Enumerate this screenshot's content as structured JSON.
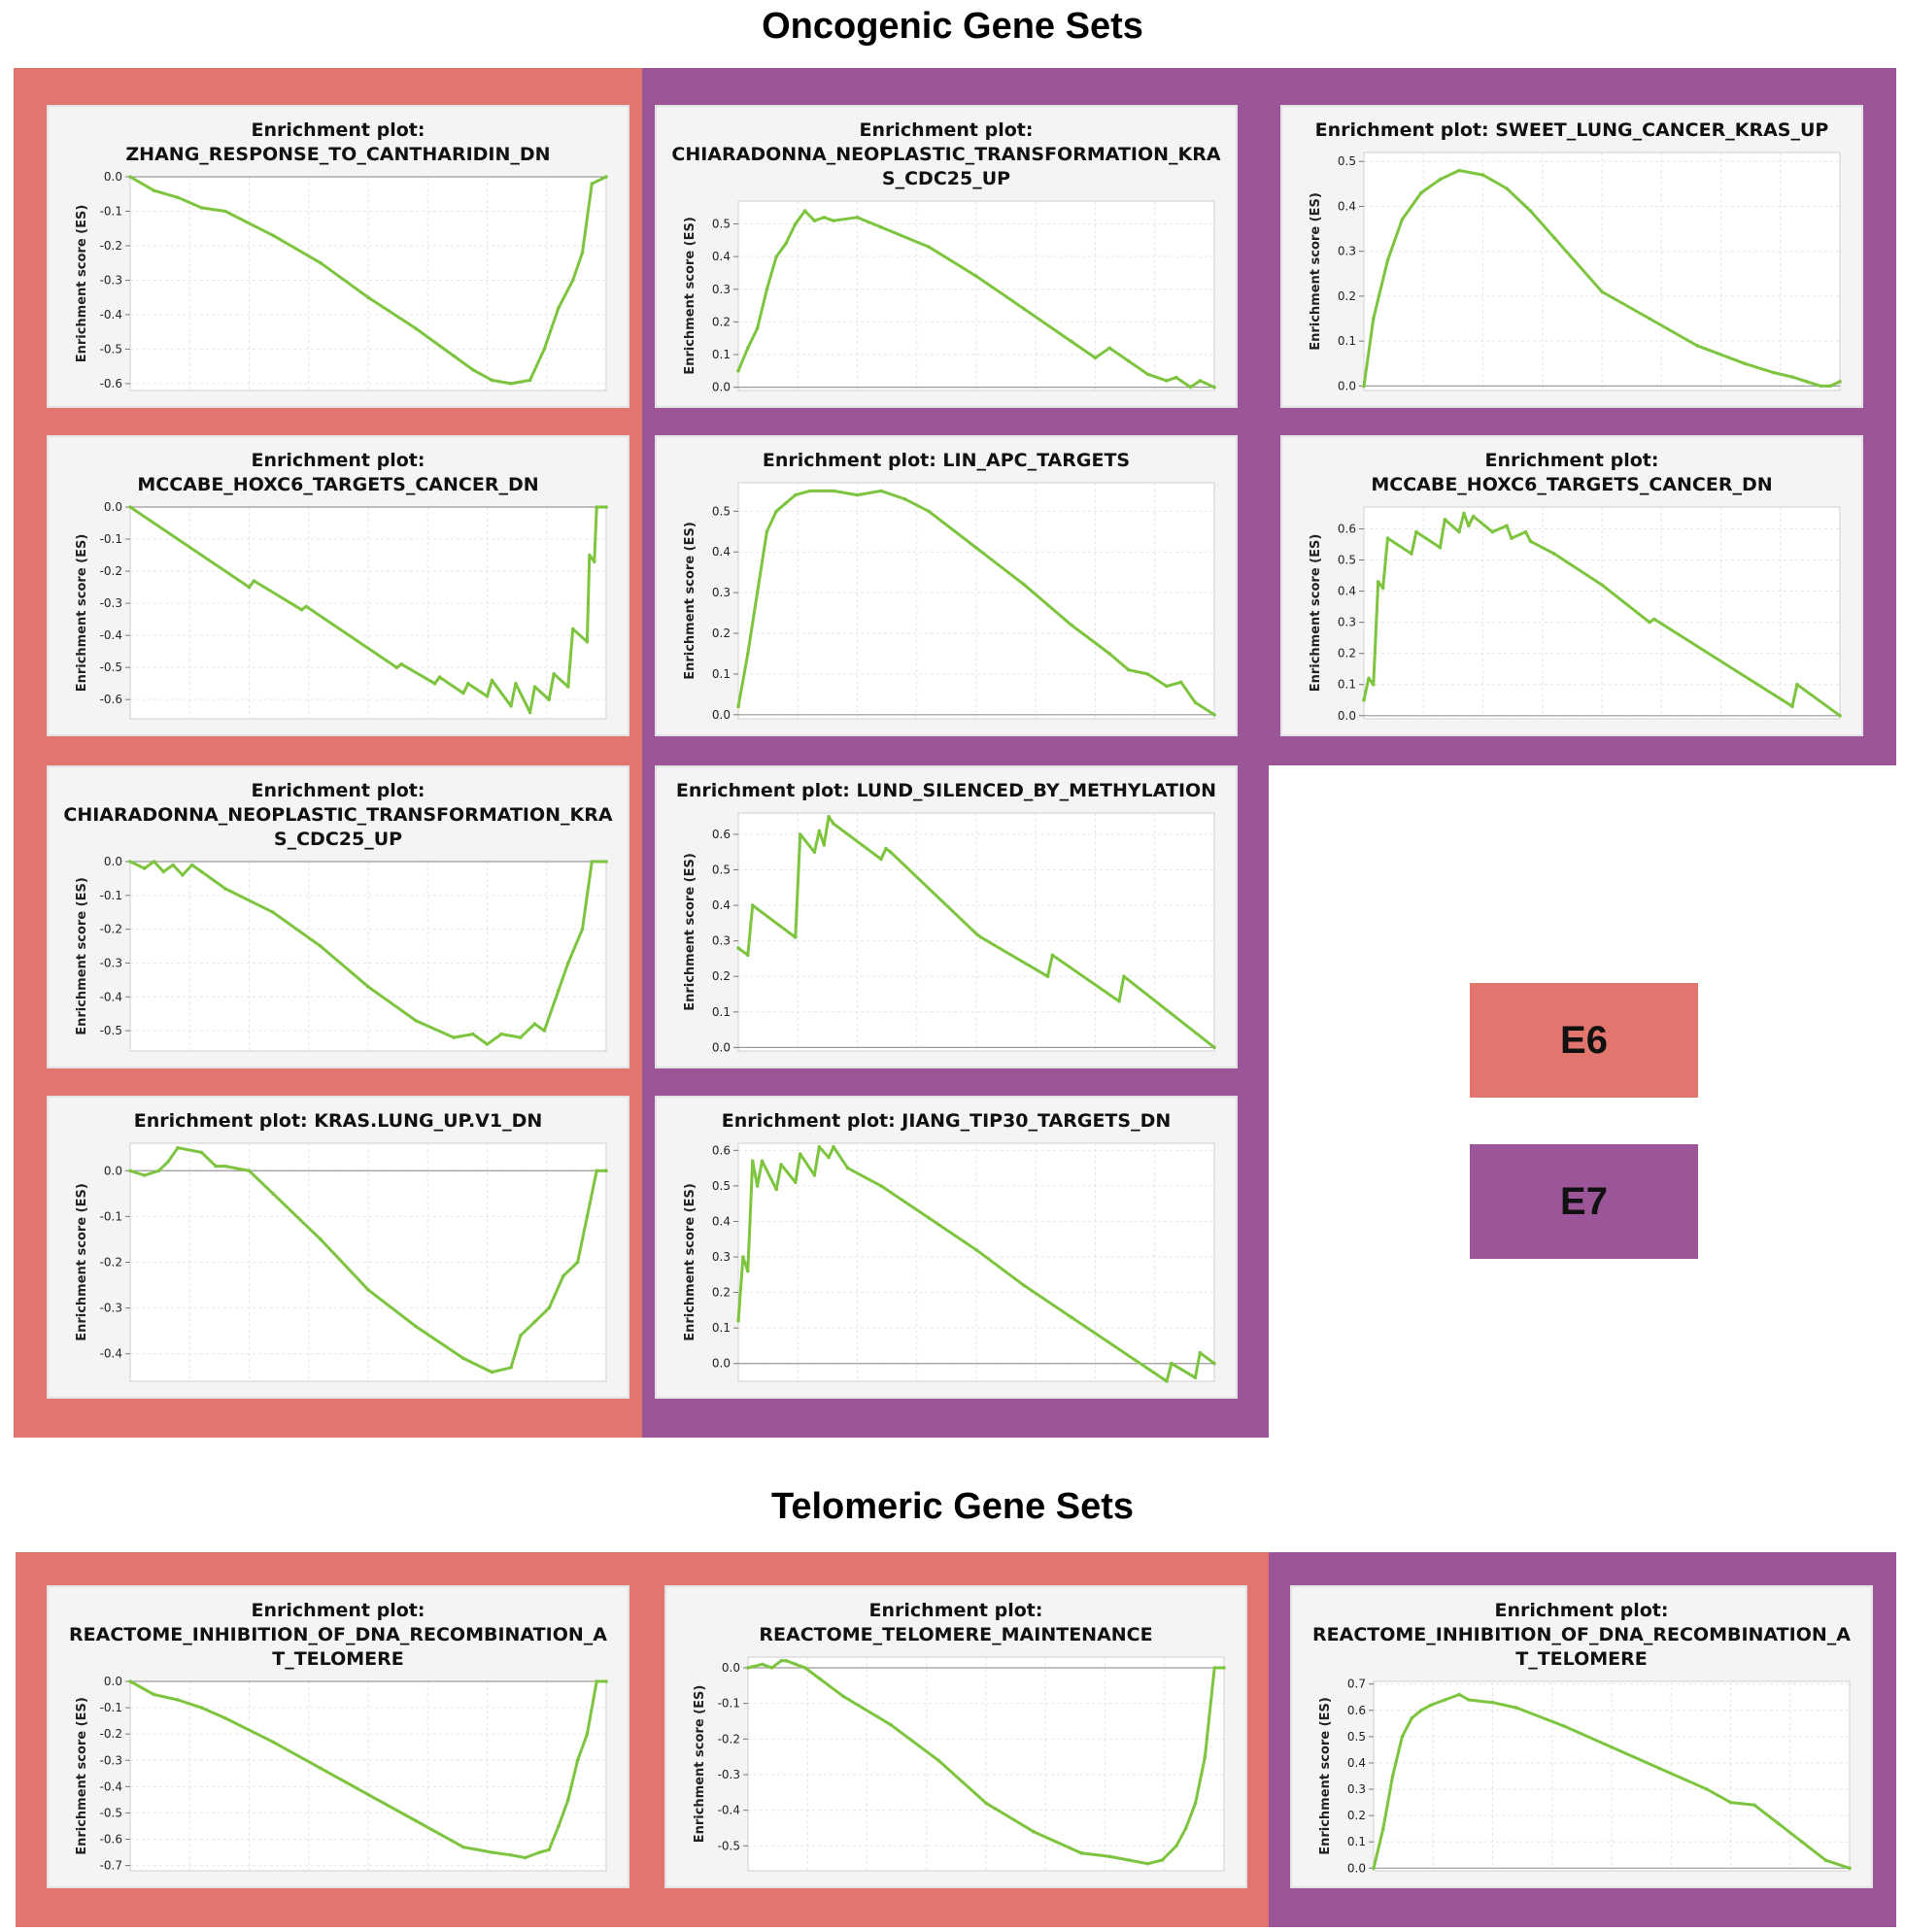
{
  "titles": {
    "oncogenic": "Oncogenic Gene Sets",
    "telomeric": "Telomeric Gene Sets"
  },
  "colors": {
    "E6": "#e3756f",
    "E7": "#9b5598",
    "curve": "#7dc43f",
    "panel_bg": "#f4f4f4"
  },
  "legend": [
    {
      "label": "E6",
      "color": "#e3756f"
    },
    {
      "label": "E7",
      "color": "#9b5598"
    }
  ],
  "ylabel": "Enrichment score (ES)",
  "chart_data": [
    {
      "id": "onc-e6-1",
      "group": "E6",
      "type": "line",
      "title_lines": [
        "Enrichment plot:",
        "ZHANG_RESPONSE_TO_CANTHARIDIN_DN"
      ],
      "ylabel": "Enrichment score (ES)",
      "ylim": [
        -0.62,
        0.0
      ],
      "ticks": [
        0.0,
        -0.1,
        -0.2,
        -0.3,
        -0.4,
        -0.5,
        -0.6
      ],
      "tick_labels": [
        "0.0",
        "-0.1",
        "-0.2",
        "-0.3",
        "-0.4",
        "-0.5",
        "-0.6"
      ],
      "x": [
        0,
        0.05,
        0.1,
        0.15,
        0.2,
        0.3,
        0.4,
        0.5,
        0.6,
        0.68,
        0.72,
        0.76,
        0.8,
        0.84,
        0.87,
        0.9,
        0.93,
        0.95,
        0.97,
        1.0
      ],
      "y": [
        0.0,
        -0.04,
        -0.06,
        -0.09,
        -0.1,
        -0.17,
        -0.25,
        -0.35,
        -0.44,
        -0.52,
        -0.56,
        -0.59,
        -0.6,
        -0.59,
        -0.5,
        -0.38,
        -0.3,
        -0.22,
        -0.02,
        0.0
      ]
    },
    {
      "id": "onc-e6-2",
      "group": "E6",
      "type": "line",
      "title_lines": [
        "Enrichment plot:",
        "MCCABE_HOXC6_TARGETS_CANCER_DN"
      ],
      "ylabel": "Enrichment score (ES)",
      "ylim": [
        -0.66,
        0.0
      ],
      "ticks": [
        0.0,
        -0.1,
        -0.2,
        -0.3,
        -0.4,
        -0.5,
        -0.6
      ],
      "tick_labels": [
        "0.0",
        "-0.1",
        "-0.2",
        "-0.3",
        "-0.4",
        "-0.5",
        "-0.6"
      ],
      "x": [
        0,
        0.25,
        0.26,
        0.36,
        0.37,
        0.56,
        0.57,
        0.64,
        0.65,
        0.7,
        0.71,
        0.75,
        0.76,
        0.8,
        0.81,
        0.84,
        0.85,
        0.88,
        0.89,
        0.92,
        0.93,
        0.96,
        0.965,
        0.975,
        0.98,
        1.0
      ],
      "y": [
        0.0,
        -0.25,
        -0.23,
        -0.32,
        -0.31,
        -0.5,
        -0.49,
        -0.55,
        -0.53,
        -0.58,
        -0.55,
        -0.59,
        -0.54,
        -0.62,
        -0.55,
        -0.64,
        -0.56,
        -0.6,
        -0.52,
        -0.56,
        -0.38,
        -0.42,
        -0.15,
        -0.17,
        0.0,
        0.0
      ]
    },
    {
      "id": "onc-e6-3",
      "group": "E6",
      "type": "line",
      "title_lines": [
        "Enrichment plot:",
        "CHIARADONNA_NEOPLASTIC_TRANSFORMATION_KRA",
        "S_CDC25_UP"
      ],
      "ylabel": "Enrichment score (ES)",
      "ylim": [
        -0.56,
        0.0
      ],
      "ticks": [
        0.0,
        -0.1,
        -0.2,
        -0.3,
        -0.4,
        -0.5
      ],
      "tick_labels": [
        "0.0",
        "-0.1",
        "-0.2",
        "-0.3",
        "-0.4",
        "-0.5"
      ],
      "x": [
        0,
        0.03,
        0.05,
        0.07,
        0.09,
        0.11,
        0.13,
        0.15,
        0.2,
        0.3,
        0.4,
        0.5,
        0.6,
        0.68,
        0.72,
        0.75,
        0.78,
        0.82,
        0.85,
        0.87,
        0.9,
        0.92,
        0.95,
        0.97,
        1.0
      ],
      "y": [
        0.0,
        -0.02,
        0.0,
        -0.03,
        -0.01,
        -0.04,
        -0.01,
        -0.03,
        -0.08,
        -0.15,
        -0.25,
        -0.37,
        -0.47,
        -0.52,
        -0.51,
        -0.54,
        -0.51,
        -0.52,
        -0.48,
        -0.5,
        -0.38,
        -0.3,
        -0.2,
        0.0,
        0.0
      ]
    },
    {
      "id": "onc-e6-4",
      "group": "E6",
      "type": "line",
      "title_lines": [
        "Enrichment plot: KRAS.LUNG_UP.V1_DN"
      ],
      "ylabel": "Enrichment score (ES)",
      "ylim": [
        -0.46,
        0.06
      ],
      "ticks": [
        0.0,
        -0.1,
        -0.2,
        -0.3,
        -0.4
      ],
      "tick_labels": [
        "0.0",
        "-0.1",
        "-0.2",
        "-0.3",
        "-0.4"
      ],
      "x": [
        0,
        0.03,
        0.06,
        0.08,
        0.1,
        0.15,
        0.18,
        0.2,
        0.25,
        0.3,
        0.4,
        0.5,
        0.6,
        0.7,
        0.76,
        0.8,
        0.82,
        0.85,
        0.88,
        0.91,
        0.94,
        0.96,
        0.98,
        1.0
      ],
      "y": [
        0.0,
        -0.01,
        0.0,
        0.02,
        0.05,
        0.04,
        0.01,
        0.01,
        0.0,
        -0.05,
        -0.15,
        -0.26,
        -0.34,
        -0.41,
        -0.44,
        -0.43,
        -0.36,
        -0.33,
        -0.3,
        -0.23,
        -0.2,
        -0.1,
        0.0,
        0.0
      ]
    },
    {
      "id": "onc-e7-1",
      "group": "E7",
      "type": "line",
      "title_lines": [
        "Enrichment plot:",
        "CHIARADONNA_NEOPLASTIC_TRANSFORMATION_KRA",
        "S_CDC25_UP"
      ],
      "ylabel": "Enrichment score (ES)",
      "ylim": [
        -0.01,
        0.57
      ],
      "ticks": [
        0.0,
        0.1,
        0.2,
        0.3,
        0.4,
        0.5
      ],
      "tick_labels": [
        "0.0",
        "0.1",
        "0.2",
        "0.3",
        "0.4",
        "0.5"
      ],
      "x": [
        0,
        0.02,
        0.04,
        0.06,
        0.08,
        0.1,
        0.12,
        0.14,
        0.16,
        0.18,
        0.2,
        0.25,
        0.3,
        0.4,
        0.5,
        0.6,
        0.7,
        0.75,
        0.78,
        0.82,
        0.86,
        0.9,
        0.92,
        0.95,
        0.97,
        1.0
      ],
      "y": [
        0.05,
        0.12,
        0.18,
        0.3,
        0.4,
        0.44,
        0.5,
        0.54,
        0.51,
        0.52,
        0.51,
        0.52,
        0.49,
        0.43,
        0.34,
        0.24,
        0.14,
        0.09,
        0.12,
        0.08,
        0.04,
        0.02,
        0.03,
        0.0,
        0.02,
        0.0
      ]
    },
    {
      "id": "onc-e7-2",
      "group": "E7",
      "type": "line",
      "title_lines": [
        "Enrichment plot: LIN_APC_TARGETS"
      ],
      "ylabel": "Enrichment score (ES)",
      "ylim": [
        -0.01,
        0.57
      ],
      "ticks": [
        0.0,
        0.1,
        0.2,
        0.3,
        0.4,
        0.5
      ],
      "tick_labels": [
        "0.0",
        "0.1",
        "0.2",
        "0.3",
        "0.4",
        "0.5"
      ],
      "x": [
        0,
        0.02,
        0.04,
        0.06,
        0.08,
        0.1,
        0.12,
        0.15,
        0.2,
        0.25,
        0.3,
        0.35,
        0.4,
        0.5,
        0.6,
        0.7,
        0.78,
        0.82,
        0.86,
        0.9,
        0.93,
        0.96,
        1.0
      ],
      "y": [
        0.02,
        0.15,
        0.3,
        0.45,
        0.5,
        0.52,
        0.54,
        0.55,
        0.55,
        0.54,
        0.55,
        0.53,
        0.5,
        0.41,
        0.32,
        0.22,
        0.15,
        0.11,
        0.1,
        0.07,
        0.08,
        0.03,
        0.0
      ]
    },
    {
      "id": "onc-e7-3",
      "group": "E7",
      "type": "line",
      "title_lines": [
        "Enrichment plot: LUND_SILENCED_BY_METHYLATION"
      ],
      "ylabel": "Enrichment score (ES)",
      "ylim": [
        -0.01,
        0.66
      ],
      "ticks": [
        0.0,
        0.1,
        0.2,
        0.3,
        0.4,
        0.5,
        0.6
      ],
      "tick_labels": [
        "0.0",
        "0.1",
        "0.2",
        "0.3",
        "0.4",
        "0.5",
        "0.6"
      ],
      "x": [
        0,
        0.02,
        0.03,
        0.12,
        0.13,
        0.16,
        0.17,
        0.18,
        0.19,
        0.2,
        0.3,
        0.31,
        0.32,
        0.5,
        0.51,
        0.65,
        0.66,
        0.8,
        0.81,
        1.0
      ],
      "y": [
        0.28,
        0.26,
        0.4,
        0.31,
        0.6,
        0.55,
        0.61,
        0.57,
        0.65,
        0.63,
        0.53,
        0.56,
        0.55,
        0.32,
        0.31,
        0.2,
        0.26,
        0.13,
        0.2,
        0.0
      ]
    },
    {
      "id": "onc-e7-4",
      "group": "E7",
      "type": "line",
      "title_lines": [
        "Enrichment plot: JIANG_TIP30_TARGETS_DN"
      ],
      "ylabel": "Enrichment score (ES)",
      "ylim": [
        -0.05,
        0.62
      ],
      "ticks": [
        0.0,
        0.1,
        0.2,
        0.3,
        0.4,
        0.5,
        0.6
      ],
      "tick_labels": [
        "0.0",
        "0.1",
        "0.2",
        "0.3",
        "0.4",
        "0.5",
        "0.6"
      ],
      "x": [
        0,
        0.01,
        0.02,
        0.03,
        0.04,
        0.05,
        0.08,
        0.09,
        0.12,
        0.13,
        0.16,
        0.17,
        0.19,
        0.2,
        0.23,
        0.3,
        0.4,
        0.5,
        0.6,
        0.7,
        0.9,
        0.91,
        0.96,
        0.97,
        1.0
      ],
      "y": [
        0.12,
        0.3,
        0.26,
        0.57,
        0.5,
        0.57,
        0.49,
        0.56,
        0.51,
        0.59,
        0.53,
        0.61,
        0.58,
        0.61,
        0.55,
        0.5,
        0.41,
        0.32,
        0.22,
        0.13,
        -0.05,
        0.0,
        -0.04,
        0.03,
        0.0
      ]
    },
    {
      "id": "onc-e7-5",
      "group": "E7",
      "type": "line",
      "title_lines": [
        "Enrichment plot: SWEET_LUNG_CANCER_KRAS_UP"
      ],
      "ylabel": "Enrichment score (ES)",
      "ylim": [
        -0.01,
        0.52
      ],
      "ticks": [
        0.0,
        0.1,
        0.2,
        0.3,
        0.4,
        0.5
      ],
      "tick_labels": [
        "0.0",
        "0.1",
        "0.2",
        "0.3",
        "0.4",
        "0.5"
      ],
      "x": [
        0,
        0.02,
        0.05,
        0.08,
        0.12,
        0.16,
        0.2,
        0.25,
        0.3,
        0.35,
        0.4,
        0.5,
        0.6,
        0.7,
        0.8,
        0.86,
        0.9,
        0.93,
        0.96,
        0.98,
        1.0
      ],
      "y": [
        0.0,
        0.15,
        0.28,
        0.37,
        0.43,
        0.46,
        0.48,
        0.47,
        0.44,
        0.39,
        0.33,
        0.21,
        0.15,
        0.09,
        0.05,
        0.03,
        0.02,
        0.01,
        0.0,
        0.0,
        0.01
      ]
    },
    {
      "id": "onc-e7-6",
      "group": "E7",
      "type": "line",
      "title_lines": [
        "Enrichment plot:",
        "MCCABE_HOXC6_TARGETS_CANCER_DN"
      ],
      "ylabel": "Enrichment score (ES)",
      "ylim": [
        -0.01,
        0.67
      ],
      "ticks": [
        0.0,
        0.1,
        0.2,
        0.3,
        0.4,
        0.5,
        0.6
      ],
      "tick_labels": [
        "0.0",
        "0.1",
        "0.2",
        "0.3",
        "0.4",
        "0.5",
        "0.6"
      ],
      "x": [
        0,
        0.01,
        0.02,
        0.03,
        0.04,
        0.05,
        0.1,
        0.11,
        0.16,
        0.17,
        0.2,
        0.21,
        0.22,
        0.23,
        0.27,
        0.3,
        0.31,
        0.34,
        0.35,
        0.4,
        0.5,
        0.6,
        0.61,
        0.9,
        0.91,
        1.0
      ],
      "y": [
        0.05,
        0.12,
        0.1,
        0.43,
        0.41,
        0.57,
        0.52,
        0.59,
        0.54,
        0.63,
        0.59,
        0.65,
        0.61,
        0.64,
        0.59,
        0.61,
        0.57,
        0.59,
        0.56,
        0.52,
        0.42,
        0.3,
        0.31,
        0.03,
        0.1,
        0.0
      ]
    },
    {
      "id": "tel-e6-1",
      "group": "E6",
      "type": "line",
      "title_lines": [
        "Enrichment plot:",
        "REACTOME_INHIBITION_OF_DNA_RECOMBINATION_A",
        "T_TELOMERE"
      ],
      "ylabel": "Enrichment score (ES)",
      "ylim": [
        -0.72,
        0.0
      ],
      "ticks": [
        0.0,
        -0.1,
        -0.2,
        -0.3,
        -0.4,
        -0.5,
        -0.6,
        -0.7
      ],
      "tick_labels": [
        "0.0",
        "-0.1",
        "-0.2",
        "-0.3",
        "-0.4",
        "-0.5",
        "-0.6",
        "-0.7"
      ],
      "x": [
        0,
        0.05,
        0.1,
        0.15,
        0.2,
        0.3,
        0.4,
        0.5,
        0.6,
        0.7,
        0.76,
        0.8,
        0.83,
        0.86,
        0.88,
        0.9,
        0.92,
        0.94,
        0.96,
        0.98,
        1.0
      ],
      "y": [
        0.0,
        -0.05,
        -0.07,
        -0.1,
        -0.14,
        -0.23,
        -0.33,
        -0.43,
        -0.53,
        -0.63,
        -0.65,
        -0.66,
        -0.67,
        -0.65,
        -0.64,
        -0.55,
        -0.45,
        -0.3,
        -0.2,
        0.0,
        0.0
      ]
    },
    {
      "id": "tel-e6-2",
      "group": "E6",
      "type": "line",
      "title_lines": [
        "Enrichment plot:",
        "REACTOME_TELOMERE_MAINTENANCE"
      ],
      "ylabel": "Enrichment score (ES)",
      "ylim": [
        -0.57,
        0.03
      ],
      "ticks": [
        0.0,
        -0.1,
        -0.2,
        -0.3,
        -0.4,
        -0.5
      ],
      "tick_labels": [
        "0.0",
        "-0.1",
        "-0.2",
        "-0.3",
        "-0.4",
        "-0.5"
      ],
      "x": [
        0,
        0.03,
        0.05,
        0.07,
        0.08,
        0.1,
        0.12,
        0.15,
        0.2,
        0.3,
        0.4,
        0.5,
        0.6,
        0.7,
        0.76,
        0.8,
        0.84,
        0.87,
        0.9,
        0.92,
        0.94,
        0.96,
        0.98,
        1.0
      ],
      "y": [
        0.0,
        0.01,
        0.0,
        0.02,
        0.02,
        0.01,
        0.0,
        -0.03,
        -0.08,
        -0.16,
        -0.26,
        -0.38,
        -0.46,
        -0.52,
        -0.53,
        -0.54,
        -0.55,
        -0.54,
        -0.5,
        -0.45,
        -0.38,
        -0.25,
        0.0,
        0.0
      ]
    },
    {
      "id": "tel-e7-1",
      "group": "E7",
      "type": "line",
      "title_lines": [
        "Enrichment plot:",
        "REACTOME_INHIBITION_OF_DNA_RECOMBINATION_A",
        "T_TELOMERE"
      ],
      "ylabel": "Enrichment score (ES)",
      "ylim": [
        -0.01,
        0.71
      ],
      "ticks": [
        0.0,
        0.1,
        0.2,
        0.3,
        0.4,
        0.5,
        0.6,
        0.7
      ],
      "tick_labels": [
        "0.0",
        "0.1",
        "0.2",
        "0.3",
        "0.4",
        "0.5",
        "0.6",
        "0.7"
      ],
      "x": [
        0,
        0.02,
        0.04,
        0.06,
        0.08,
        0.1,
        0.12,
        0.15,
        0.18,
        0.2,
        0.25,
        0.3,
        0.4,
        0.5,
        0.6,
        0.7,
        0.75,
        0.8,
        0.85,
        0.9,
        0.95,
        1.0
      ],
      "y": [
        0.0,
        0.15,
        0.35,
        0.5,
        0.57,
        0.6,
        0.62,
        0.64,
        0.66,
        0.64,
        0.63,
        0.61,
        0.54,
        0.46,
        0.38,
        0.3,
        0.25,
        0.24,
        0.17,
        0.1,
        0.03,
        0.0
      ]
    }
  ]
}
